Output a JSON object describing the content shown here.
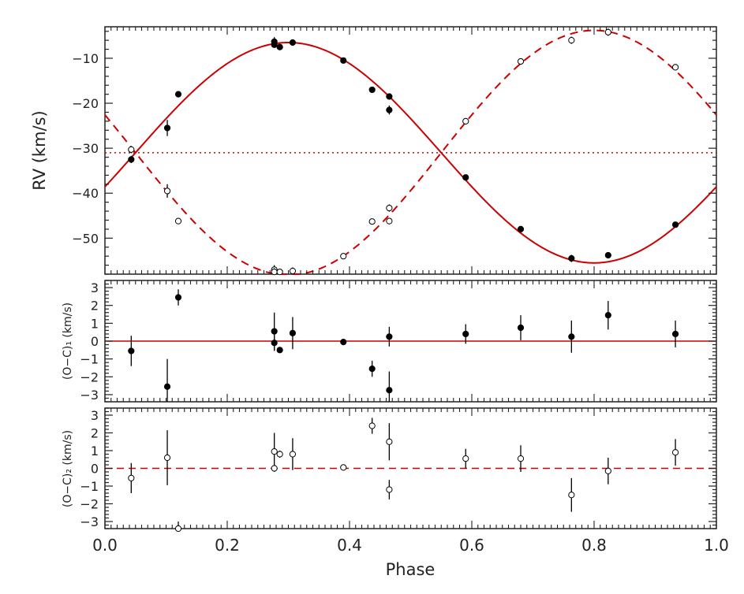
{
  "chart_data": [
    {
      "panel": "top",
      "type": "scatter",
      "xlabel": "",
      "ylabel": "RV (km/s)",
      "xlim": [
        0.0,
        1.0
      ],
      "ylim": [
        -58,
        -3
      ],
      "yticks": [
        -10,
        -20,
        -30,
        -40,
        -50
      ],
      "ytick_labels": [
        "−10",
        "−20",
        "−30",
        "−40",
        "−50"
      ],
      "systemic_velocity": -31,
      "model_curves": [
        {
          "name": "primary model",
          "style": "solid",
          "gamma": -31,
          "K": 24.5,
          "phase_of_max": 0.3
        },
        {
          "name": "secondary model",
          "style": "dashed",
          "gamma": -31,
          "K": 27.2,
          "phase_of_max": 0.8
        }
      ],
      "series": [
        {
          "name": "primary",
          "marker": "filled-circle",
          "x": [
            0.043,
            0.102,
            0.12,
            0.277,
            0.277,
            0.286,
            0.307,
            0.39,
            0.437,
            0.465,
            0.465,
            0.59,
            0.68,
            0.763,
            0.823,
            0.933
          ],
          "y": [
            -32.5,
            -25.5,
            -18.0,
            -6.3,
            -7.0,
            -7.5,
            -6.5,
            -10.5,
            -17.0,
            -18.5,
            -21.5,
            -36.5,
            -48.0,
            -54.5,
            -53.8,
            -47.0
          ],
          "err": [
            0.8,
            1.8,
            0.6,
            1.0,
            0.6,
            0.7,
            0.7,
            0.6,
            0.6,
            0.7,
            1.0,
            0.6,
            0.7,
            0.8,
            0.7,
            0.6
          ]
        },
        {
          "name": "secondary",
          "marker": "open-circle",
          "x": [
            0.043,
            0.102,
            0.12,
            0.277,
            0.277,
            0.286,
            0.307,
            0.39,
            0.437,
            0.465,
            0.465,
            0.59,
            0.68,
            0.763,
            0.823,
            0.933
          ],
          "y": [
            -30.3,
            -39.5,
            -46.2,
            -57.0,
            -57.5,
            -57.5,
            -57.3,
            -54.0,
            -46.3,
            -43.3,
            -46.2,
            -24.0,
            -10.7,
            -6.0,
            -4.2,
            -12.0
          ],
          "err": [
            0.8,
            1.5,
            0.6,
            1.0,
            0.8,
            0.7,
            0.8,
            0.6,
            0.6,
            0.8,
            0.7,
            0.7,
            0.7,
            0.8,
            0.8,
            0.7
          ]
        }
      ]
    },
    {
      "panel": "middle",
      "type": "scatter",
      "ylabel": "(O−C)₁ (km/s)",
      "xlim": [
        0.0,
        1.0
      ],
      "ylim": [
        -3.4,
        3.4
      ],
      "yticks": [
        3,
        2,
        1,
        0,
        -1,
        -2,
        -3
      ],
      "ytick_labels": [
        "3",
        "2",
        "1",
        "0",
        "−1",
        "−2",
        "−3"
      ],
      "reference_line": {
        "y": 0,
        "style": "solid"
      },
      "series": [
        {
          "name": "primary residuals",
          "marker": "filled-circle",
          "x": [
            0.043,
            0.102,
            0.12,
            0.277,
            0.277,
            0.286,
            0.307,
            0.39,
            0.437,
            0.465,
            0.465,
            0.59,
            0.68,
            0.763,
            0.823,
            0.933
          ],
          "y": [
            -0.55,
            -2.55,
            2.45,
            0.55,
            -0.1,
            -0.5,
            0.45,
            -0.05,
            -1.55,
            0.25,
            -2.75,
            0.4,
            0.75,
            0.25,
            1.45,
            0.4
          ],
          "err": [
            0.85,
            1.55,
            0.45,
            1.05,
            0.45,
            0.15,
            0.9,
            0.1,
            0.45,
            0.55,
            1.05,
            0.55,
            0.7,
            0.9,
            0.8,
            0.75
          ]
        }
      ]
    },
    {
      "panel": "bottom",
      "type": "scatter",
      "ylabel": "(O−C)₂ (km/s)",
      "xlabel": "Phase",
      "xlim": [
        0.0,
        1.0
      ],
      "ylim": [
        -3.4,
        3.4
      ],
      "xticks": [
        0.0,
        0.2,
        0.4,
        0.6,
        0.8,
        1.0
      ],
      "xtick_labels": [
        "0.0",
        "0.2",
        "0.4",
        "0.6",
        "0.8",
        "1.0"
      ],
      "yticks": [
        3,
        2,
        1,
        0,
        -1,
        -2,
        -3
      ],
      "ytick_labels": [
        "3",
        "2",
        "1",
        "0",
        "−1",
        "−2",
        "−3"
      ],
      "reference_line": {
        "y": 0,
        "style": "dashed"
      },
      "series": [
        {
          "name": "secondary residuals",
          "marker": "open-circle",
          "x": [
            0.043,
            0.102,
            0.12,
            0.277,
            0.277,
            0.286,
            0.307,
            0.39,
            0.437,
            0.465,
            0.465,
            0.59,
            0.68,
            0.763,
            0.823,
            0.933
          ],
          "y": [
            -0.55,
            0.6,
            -3.4,
            0.95,
            0.0,
            0.8,
            0.8,
            0.05,
            2.4,
            1.5,
            -1.2,
            0.55,
            0.55,
            -1.5,
            -0.15,
            0.9
          ],
          "err": [
            0.85,
            1.55,
            0.4,
            1.05,
            0.2,
            0.2,
            0.9,
            0.1,
            0.45,
            1.05,
            0.55,
            0.55,
            0.75,
            0.95,
            0.75,
            0.75
          ]
        }
      ]
    }
  ],
  "colors": {
    "model": "#cc0000",
    "axes": "#222222",
    "points": "#000000"
  }
}
